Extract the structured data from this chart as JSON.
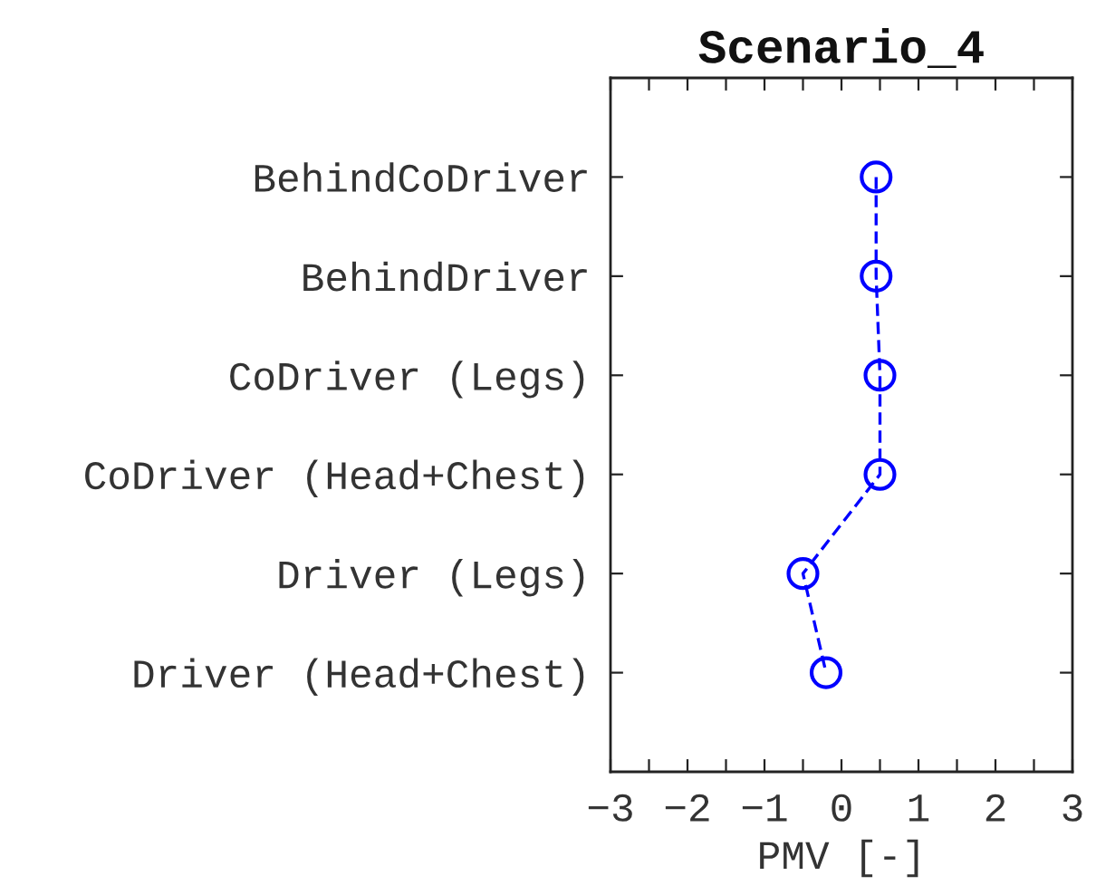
{
  "chart_data": {
    "type": "line",
    "title": "Scenario_4",
    "xlabel": "PMV [-]",
    "orientation": "horizontal",
    "categories": [
      "BehindCoDriver",
      "BehindDriver",
      "CoDriver (Legs)",
      "CoDriver (Head+Chest)",
      "Driver (Legs)",
      "Driver (Head+Chest)"
    ],
    "series": [
      {
        "color": "#0000ff",
        "values": [
          0.45,
          0.45,
          0.5,
          0.5,
          -0.5,
          -0.2
        ]
      }
    ],
    "xlim": [
      -3,
      3
    ],
    "xticks": [
      -3,
      {
        "value": -2.5,
        "label": null
      },
      -2,
      {
        "value": -1.5,
        "label": null
      },
      -1,
      {
        "value": -0.5,
        "label": null
      },
      0,
      {
        "value": 0.5,
        "label": null
      },
      1,
      {
        "value": 1.5,
        "label": null
      },
      2,
      {
        "value": 2.5,
        "label": null
      },
      3
    ],
    "marker": "circle",
    "line_style": "dashed"
  }
}
